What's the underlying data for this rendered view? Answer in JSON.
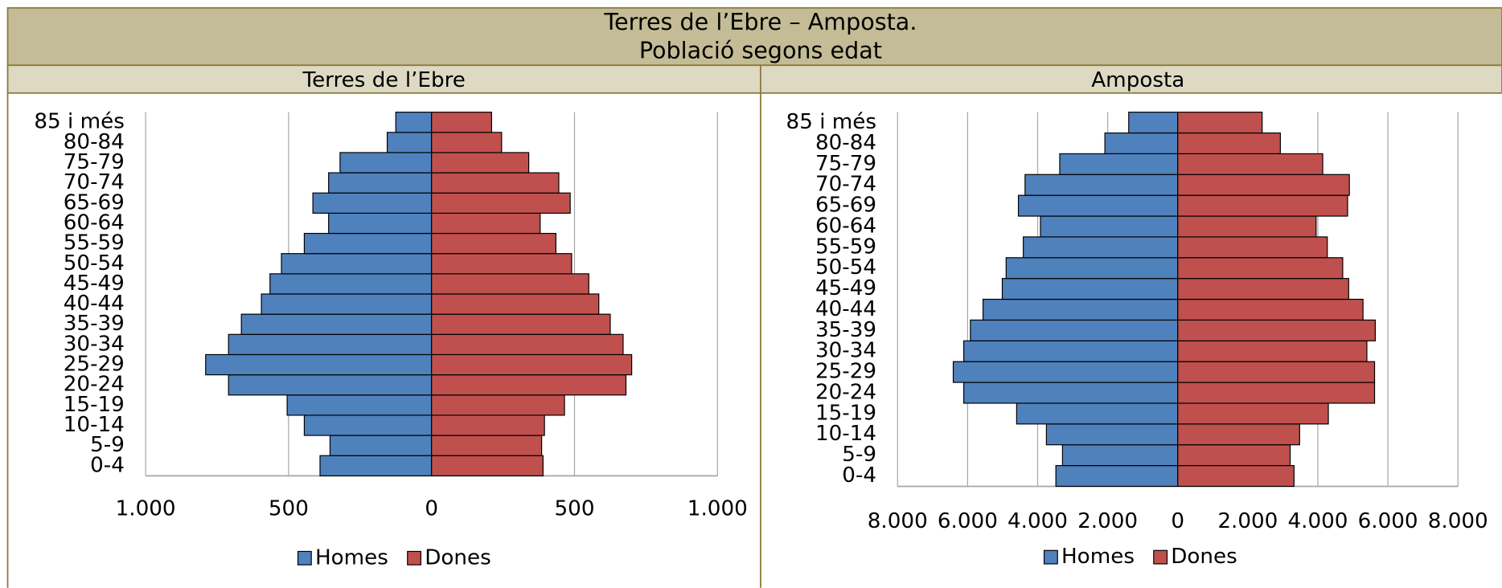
{
  "header": {
    "title": "Terres de l’Ebre – Amposta.",
    "subtitle": "Població segons edat"
  },
  "chart_data": [
    {
      "type": "bar",
      "orientation": "horizontal",
      "title": "Terres de l’Ebre",
      "categories": [
        "0-4",
        "5-9",
        "10-14",
        "15-19",
        "20-24",
        "25-29",
        "30-34",
        "35-39",
        "40-44",
        "45-49",
        "50-54",
        "55-59",
        "60-64",
        "65-69",
        "70-74",
        "75-79",
        "80-84",
        "85 i més"
      ],
      "series": [
        {
          "name": "Homes",
          "color": "#4f81bd",
          "values": [
            -390,
            -355,
            -445,
            -505,
            -710,
            -790,
            -710,
            -665,
            -595,
            -565,
            -525,
            -445,
            -360,
            -415,
            -360,
            -320,
            -155,
            -125
          ]
        },
        {
          "name": "Dones",
          "color": "#c0504d",
          "values": [
            390,
            385,
            395,
            465,
            680,
            700,
            670,
            625,
            585,
            550,
            490,
            435,
            380,
            485,
            445,
            340,
            245,
            210
          ]
        }
      ],
      "xlim": [
        -1000,
        1000
      ],
      "xticks": [
        {
          "value": -1000,
          "label": "1.000"
        },
        {
          "value": -500,
          "label": "500"
        },
        0,
        500,
        {
          "value": 1000,
          "label": "1.000"
        }
      ],
      "grid": true,
      "legend": "bottom"
    },
    {
      "type": "bar",
      "orientation": "horizontal",
      "title": "Amposta",
      "categories": [
        "0-4",
        "5-9",
        "10-14",
        "15-19",
        "20-24",
        "25-29",
        "30-34",
        "35-39",
        "40-44",
        "45-49",
        "50-54",
        "55-59",
        "60-64",
        "65-69",
        "70-74",
        "75-79",
        "80-84",
        "85 i més"
      ],
      "series": [
        {
          "name": "Homes",
          "color": "#4f81bd",
          "values": [
            -3480,
            -3290,
            -3750,
            -4600,
            -6110,
            -6410,
            -6110,
            -5920,
            -5560,
            -5010,
            -4900,
            -4410,
            -3920,
            -4550,
            -4360,
            -3370,
            -2080,
            -1400
          ]
        },
        {
          "name": "Dones",
          "color": "#c0504d",
          "values": [
            3320,
            3210,
            3480,
            4300,
            5620,
            5620,
            5400,
            5640,
            5290,
            4880,
            4710,
            4270,
            3950,
            4850,
            4900,
            4140,
            2930,
            2410
          ]
        }
      ],
      "xlim": [
        -8000,
        8000
      ],
      "xticks": [
        {
          "value": -8000,
          "label": "8.000"
        },
        {
          "value": -6000,
          "label": "6.000"
        },
        {
          "value": -4000,
          "label": "4.000"
        },
        {
          "value": -2000,
          "label": "2.000"
        },
        0,
        {
          "value": 2000,
          "label": "2.000"
        },
        {
          "value": 4000,
          "label": "4.000"
        },
        {
          "value": 6000,
          "label": "6.000"
        },
        {
          "value": 8000,
          "label": "8.000"
        }
      ],
      "grid": true,
      "legend": "bottom"
    }
  ]
}
